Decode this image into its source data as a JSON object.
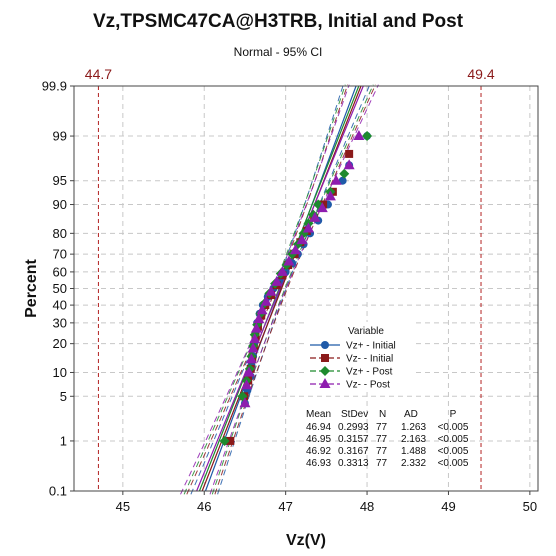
{
  "chart_data": {
    "type": "scatter",
    "title": "Vz,TPSMC47CA@H3TRB, Initial and Post",
    "subtitle": "Normal - 95% CI",
    "xlabel": "Vz(V)",
    "ylabel": "Percent",
    "x_ticks": [
      "45",
      "46",
      "47",
      "48",
      "49",
      "50"
    ],
    "y_ticks": [
      "0.1",
      "1",
      "5",
      "10",
      "20",
      "30",
      "40",
      "50",
      "60",
      "70",
      "80",
      "90",
      "95",
      "99",
      "99.9"
    ],
    "xlim": [
      44.4,
      50.1
    ],
    "ylim": [
      0.1,
      99.9
    ],
    "y_scale": "normal probability",
    "grid": true,
    "reference_lines": [
      {
        "value": 44.7,
        "label": "44.7"
      },
      {
        "value": 49.4,
        "label": "49.4"
      }
    ],
    "legend": {
      "title": "Variable",
      "placement": "lower-right",
      "entries": [
        "Vz+ - Initial",
        "Vz- - Initial",
        "Vz+ - Post",
        "Vz- - Post"
      ]
    },
    "stats_table": {
      "headers": [
        "Mean",
        "StDev",
        "N",
        "AD",
        "P"
      ],
      "rows": [
        [
          "46.94",
          "0.2993",
          "77",
          "1.263",
          "<0.005"
        ],
        [
          "46.95",
          "0.3157",
          "77",
          "2.163",
          "<0.005"
        ],
        [
          "46.92",
          "0.3167",
          "77",
          "1.488",
          "<0.005"
        ],
        [
          "46.93",
          "0.3313",
          "77",
          "2.332",
          "<0.005"
        ]
      ]
    },
    "series": [
      {
        "name": "Vz+ - Initial",
        "mean": 46.94,
        "stdev": 0.2993,
        "n": 77,
        "color": "#1f5aa8",
        "marker": "circle",
        "x": [
          46.27,
          46.5,
          46.53,
          46.57,
          46.58,
          46.6,
          46.61,
          46.63,
          46.65,
          46.68,
          46.72,
          46.78,
          46.85,
          46.92,
          47.0,
          47.08,
          47.15,
          47.22,
          47.3,
          47.4,
          47.52,
          47.7,
          47.78,
          48.0
        ],
        "y": [
          1.0,
          4.0,
          6.0,
          9.0,
          12.0,
          15.0,
          20.0,
          25.0,
          30.0,
          35.0,
          40.0,
          45.0,
          50.0,
          55.0,
          60.0,
          65.0,
          70.0,
          75.0,
          80.0,
          85.0,
          90.0,
          95.0,
          97.0,
          99.0
        ]
      },
      {
        "name": "Vz- - Initial",
        "mean": 46.95,
        "stdev": 0.3157,
        "n": 77,
        "color": "#8b1a1a",
        "marker": "square",
        "x": [
          46.32,
          46.49,
          46.54,
          46.57,
          46.59,
          46.61,
          46.63,
          46.66,
          46.7,
          46.75,
          46.82,
          46.89,
          46.96,
          47.03,
          47.11,
          47.18,
          47.26,
          47.35,
          47.46,
          47.58,
          47.78
        ],
        "y": [
          1.0,
          5.0,
          8.0,
          11.0,
          14.0,
          18.0,
          23.0,
          28.0,
          34.0,
          40.0,
          46.0,
          52.0,
          58.0,
          64.0,
          70.0,
          76.0,
          81.0,
          86.0,
          90.0,
          93.0,
          98.0
        ]
      },
      {
        "name": "Vz+ - Post",
        "mean": 46.92,
        "stdev": 0.3167,
        "n": 77,
        "color": "#1e8a2e",
        "marker": "diamond",
        "x": [
          46.25,
          46.47,
          46.52,
          46.56,
          46.58,
          46.6,
          46.62,
          46.65,
          46.69,
          46.74,
          46.8,
          46.87,
          46.94,
          47.01,
          47.08,
          47.15,
          47.22,
          47.28,
          47.34,
          47.4,
          47.55,
          47.72,
          48.0
        ],
        "y": [
          1.0,
          5.0,
          8.0,
          11.0,
          15.0,
          19.0,
          24.0,
          29.0,
          35.0,
          41.0,
          47.0,
          53.0,
          59.0,
          64.0,
          70.0,
          75.0,
          80.0,
          84.0,
          87.0,
          90.0,
          93.0,
          96.0,
          99.0
        ]
      },
      {
        "name": "Vz- - Post",
        "mean": 46.93,
        "stdev": 0.3313,
        "n": 77,
        "color": "#8e1cae",
        "marker": "triangle",
        "x": [
          46.5,
          46.52,
          46.55,
          46.58,
          46.6,
          46.62,
          46.64,
          46.67,
          46.71,
          46.76,
          46.82,
          46.89,
          46.96,
          47.04,
          47.12,
          47.2,
          47.28,
          47.36,
          47.45,
          47.55,
          47.62,
          47.78,
          47.9
        ],
        "y": [
          4.0,
          7.0,
          10.0,
          14.0,
          18.0,
          22.0,
          27.0,
          32.0,
          37.0,
          42.0,
          48.0,
          54.0,
          60.0,
          66.0,
          72.0,
          77.0,
          82.0,
          86.0,
          89.0,
          92.0,
          95.0,
          97.0,
          99.0
        ]
      }
    ]
  }
}
